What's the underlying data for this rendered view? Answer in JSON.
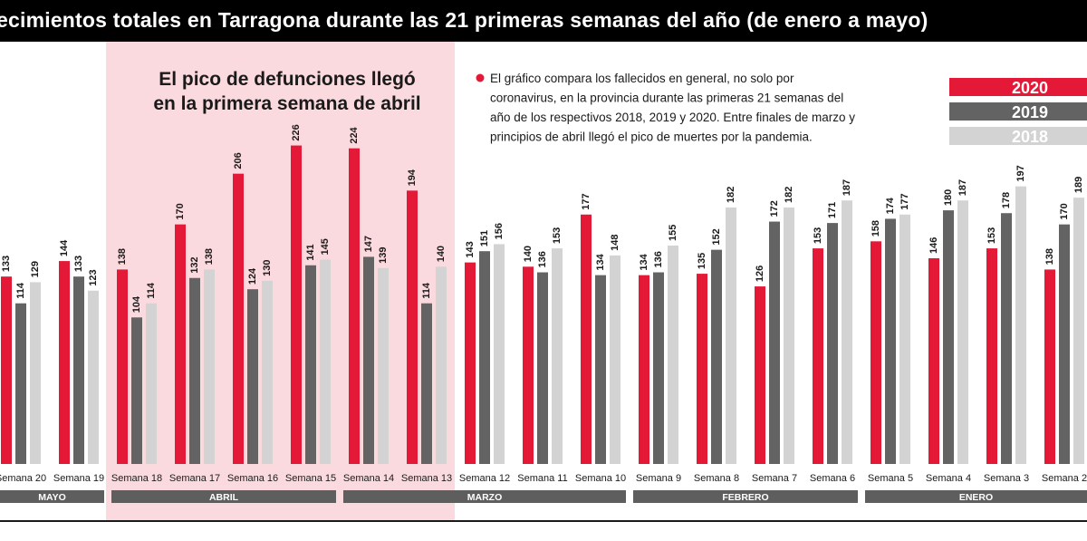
{
  "header": {
    "title": "ecimientos totales en Tarragona durante las 21 primeras semanas del año (de enero a mayo)"
  },
  "highlight": {
    "title_lines": [
      "El pico de defunciones llegó",
      "en la primera semana de abril"
    ]
  },
  "note": {
    "lines": [
      "El gráfico compara los fallecidos en general, no solo por",
      "coronavirus, en la provincia durante las primeras 21 semanas del",
      "año de los respectivos 2018, 2019 y 2020. Entre finales de marzo y",
      "principios de abril llegó el pico de muertes por la pandemia."
    ]
  },
  "colors": {
    "2020": "#e31937",
    "2019": "#636363",
    "2018": "#d3d3d3",
    "highlight": "#fbdadf",
    "month_band": "#5e5e5e"
  },
  "chart_data": {
    "type": "bar",
    "title": "ecimientos totales en Tarragona durante las 21 primeras semanas del año (de enero a mayo)",
    "categories": [
      "Semana 20",
      "Semana 19",
      "Semana 18",
      "Semana 17",
      "Semana 16",
      "Semana 15",
      "Semana 14",
      "Semana 13",
      "Semana 12",
      "Semana 11",
      "Semana 10",
      "Semana 9",
      "Semana 8",
      "Semana 7",
      "Semana 6",
      "Semana 5",
      "Semana 4",
      "Semana 3",
      "Semana 2"
    ],
    "series": [
      {
        "name": "2020",
        "values": [
          133,
          144,
          138,
          170,
          206,
          226,
          224,
          194,
          143,
          140,
          177,
          134,
          135,
          126,
          153,
          158,
          146,
          153,
          138
        ]
      },
      {
        "name": "2019",
        "values": [
          114,
          133,
          104,
          132,
          124,
          141,
          147,
          114,
          151,
          136,
          134,
          136,
          152,
          172,
          171,
          174,
          180,
          178,
          170
        ]
      },
      {
        "name": "2018",
        "values": [
          129,
          123,
          114,
          138,
          130,
          145,
          139,
          140,
          156,
          153,
          148,
          155,
          182,
          182,
          187,
          177,
          187,
          197,
          189
        ]
      }
    ],
    "months": [
      {
        "label": "MAYO",
        "from": 0,
        "to": 1
      },
      {
        "label": "ABRIL",
        "from": 2,
        "to": 5
      },
      {
        "label": "MARZO",
        "from": 6,
        "to": 10
      },
      {
        "label": "FEBRERO",
        "from": 11,
        "to": 14
      },
      {
        "label": "ENERO",
        "from": 15,
        "to": 18
      }
    ],
    "highlight_range": [
      2,
      7
    ],
    "legend": [
      "2020",
      "2019",
      "2018"
    ],
    "legend_position": "top-right",
    "ylim": [
      0,
      240
    ],
    "grid": false
  }
}
